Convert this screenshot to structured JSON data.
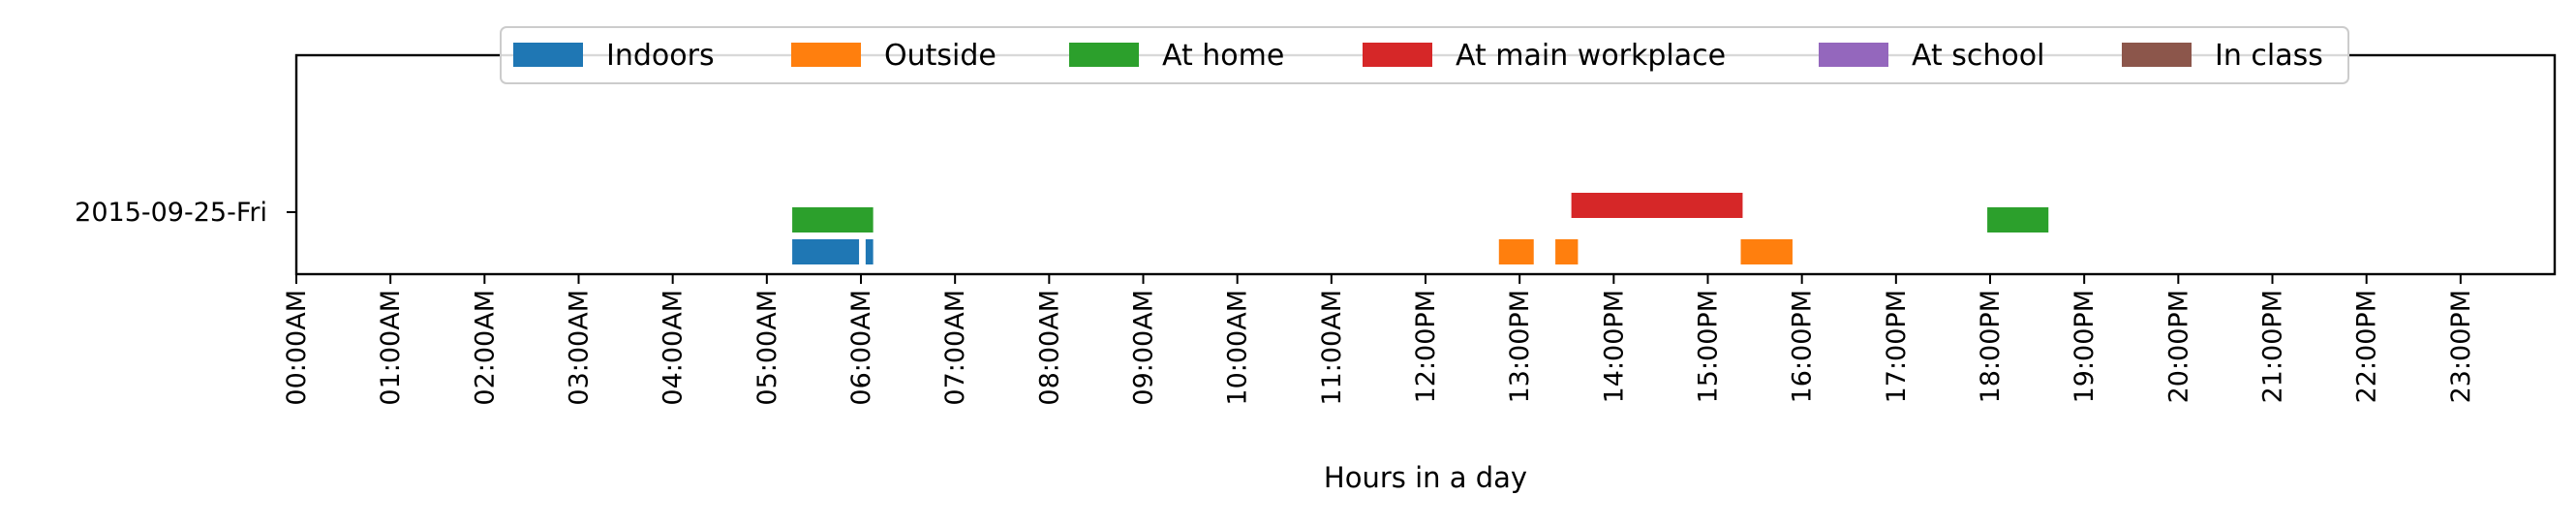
{
  "chart_data": {
    "type": "timeline",
    "xlabel": "Hours in a day",
    "xlim": [
      0,
      24
    ],
    "date_label": "2015-09-25-Fri",
    "x_tick_labels": [
      "00:00AM",
      "01:00AM",
      "02:00AM",
      "03:00AM",
      "04:00AM",
      "05:00AM",
      "06:00AM",
      "07:00AM",
      "08:00AM",
      "09:00AM",
      "10:00AM",
      "11:00AM",
      "12:00PM",
      "13:00PM",
      "14:00PM",
      "15:00PM",
      "16:00PM",
      "17:00PM",
      "18:00PM",
      "19:00PM",
      "20:00PM",
      "21:00PM",
      "22:00PM",
      "23:00PM"
    ],
    "legend": [
      {
        "name": "Indoors",
        "color": "#1f77b4"
      },
      {
        "name": "Outside",
        "color": "#ff7f0e"
      },
      {
        "name": "At home",
        "color": "#2ca02c"
      },
      {
        "name": "At main workplace",
        "color": "#d62728"
      },
      {
        "name": "At school",
        "color": "#9467bd"
      },
      {
        "name": "In class",
        "color": "#8c564b"
      }
    ],
    "series": [
      {
        "name": "Indoors",
        "lane": 0,
        "intervals": [
          [
            5.27,
            5.98
          ],
          [
            6.05,
            6.13
          ]
        ]
      },
      {
        "name": "Outside",
        "lane": 0,
        "intervals": [
          [
            12.78,
            13.15
          ],
          [
            13.38,
            13.62
          ],
          [
            15.35,
            15.9
          ]
        ]
      },
      {
        "name": "At home",
        "lane": 1,
        "intervals": [
          [
            5.27,
            6.13
          ],
          [
            17.97,
            18.62
          ]
        ]
      },
      {
        "name": "At main workplace",
        "lane": 2,
        "intervals": [
          [
            13.55,
            15.37
          ]
        ]
      }
    ]
  }
}
